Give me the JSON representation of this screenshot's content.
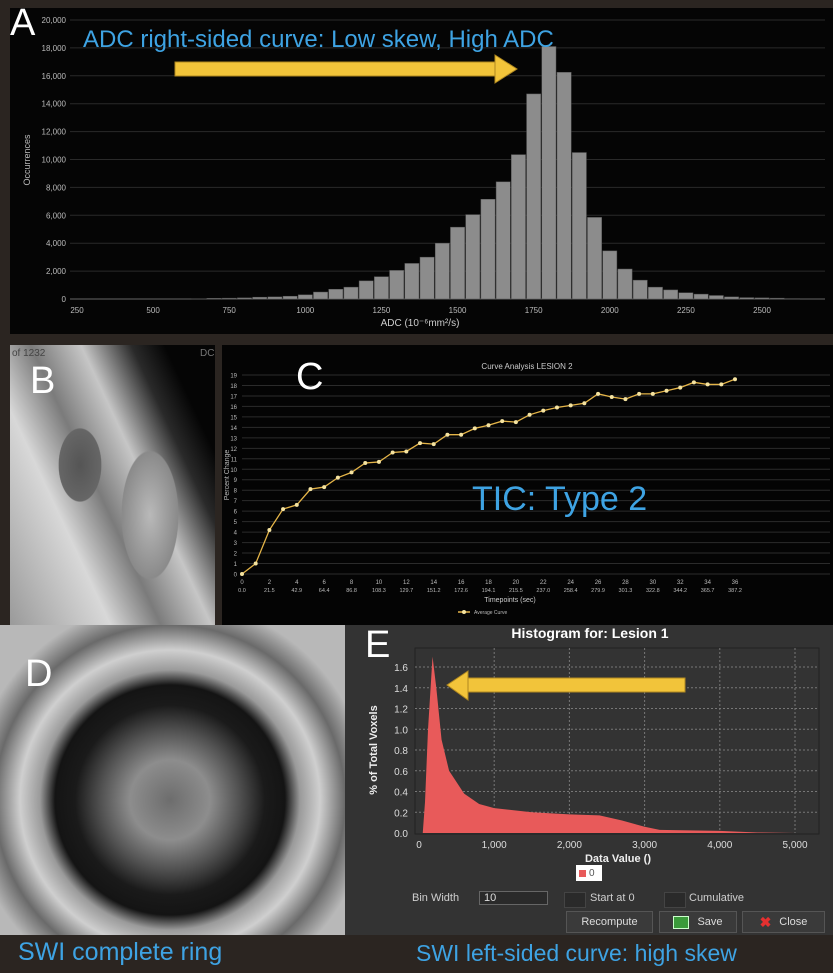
{
  "labels": {
    "a": "A",
    "b": "B",
    "c": "C",
    "d": "D",
    "e": "E"
  },
  "panel_a": {
    "annotation": "ADC right-sided curve: Low skew, High ADC"
  },
  "panel_b": {
    "slice_text": "of 1232",
    "corner_text": "DC"
  },
  "panel_c": {
    "annotation": "TIC: Type 2"
  },
  "captions": {
    "d": "SWI complete ring",
    "e": "SWI left-sided curve: high skew"
  },
  "panel_e_controls": {
    "legend_label": "0",
    "bin_width_label": "Bin Width",
    "bin_width_value": "10",
    "start_at_0_label": "Start at 0",
    "cumulative_label": "Cumulative",
    "recompute_label": "Recompute",
    "save_label": "Save",
    "close_label": "Close"
  },
  "colors": {
    "accent_blue": "#3ea3e3",
    "arrow_yellow": "#f2c43a",
    "bar_gray": "#8c8c8c",
    "curve_orange": "#e5b548",
    "hist_red": "#e85a5a"
  },
  "chart_data": [
    {
      "type": "bar",
      "title": "",
      "xlabel": "ADC (10⁻⁶mm²/s)",
      "ylabel": "Occurrences",
      "xlim": [
        220,
        2700
      ],
      "ylim": [
        0,
        20000
      ],
      "xticks": [
        250,
        500,
        750,
        1000,
        1250,
        1500,
        1750,
        2000,
        2250,
        2500
      ],
      "yticks": [
        0,
        2000,
        4000,
        6000,
        8000,
        10000,
        12000,
        14000,
        16000,
        18000,
        20000
      ],
      "ytick_labels": [
        "0",
        "2,000",
        "4,000",
        "6,000",
        "8,000",
        "10,000",
        "12,000",
        "14,000",
        "16,000",
        "18,000",
        "20,000"
      ],
      "bin_width": 50,
      "x": [
        650,
        700,
        750,
        800,
        850,
        900,
        950,
        1000,
        1050,
        1100,
        1150,
        1200,
        1250,
        1300,
        1350,
        1400,
        1450,
        1500,
        1550,
        1600,
        1650,
        1700,
        1750,
        1800,
        1850,
        1900,
        1950,
        2000,
        2050,
        2100,
        2150,
        2200,
        2250,
        2300,
        2350,
        2400,
        2450,
        2500,
        2550,
        2600
      ],
      "values": [
        20,
        50,
        60,
        80,
        130,
        150,
        200,
        300,
        500,
        700,
        850,
        1300,
        1600,
        2050,
        2550,
        3000,
        4000,
        5150,
        6050,
        7150,
        8400,
        10350,
        14700,
        18100,
        16250,
        10500,
        5850,
        3450,
        2150,
        1350,
        850,
        650,
        450,
        350,
        250,
        150,
        100,
        80,
        60,
        30
      ]
    },
    {
      "type": "line",
      "title": "Curve Analysis LESION 2",
      "xlabel": "Timepoints (sec)",
      "ylabel": "Percent Change",
      "legend": [
        "Average Curve"
      ],
      "legend_position": "bottom",
      "xlim": [
        0,
        36
      ],
      "ylim": [
        0,
        19
      ],
      "xticks": [
        0,
        2,
        4,
        6,
        8,
        10,
        12,
        14,
        16,
        18,
        20,
        22,
        24,
        26,
        28,
        30,
        32,
        34,
        36
      ],
      "xtick_seconds": [
        "0.0",
        "21.5",
        "42.9",
        "64.4",
        "86.8",
        "108.3",
        "129.7",
        "151.2",
        "172.6",
        "194.1",
        "215.5",
        "237.0",
        "258.4",
        "279.9",
        "301.3",
        "322.8",
        "344.2",
        "365.7",
        "387.2"
      ],
      "yticks": [
        0,
        1,
        2,
        3,
        4,
        5,
        6,
        7,
        8,
        9,
        10,
        11,
        12,
        13,
        14,
        15,
        16,
        17,
        18,
        19
      ],
      "series": [
        {
          "name": "Average Curve",
          "x": [
            0,
            1,
            2,
            3,
            4,
            5,
            6,
            7,
            8,
            9,
            10,
            11,
            12,
            13,
            14,
            15,
            16,
            17,
            18,
            19,
            20,
            21,
            22,
            23,
            24,
            25,
            26,
            27,
            28,
            29,
            30,
            31,
            32,
            33,
            34,
            35,
            36
          ],
          "values": [
            0,
            1,
            4.2,
            6.2,
            6.6,
            8.1,
            8.3,
            9.2,
            9.7,
            10.6,
            10.7,
            11.6,
            11.7,
            12.5,
            12.4,
            13.3,
            13.3,
            13.9,
            14.2,
            14.6,
            14.5,
            15.2,
            15.6,
            15.9,
            16.1,
            16.3,
            17.2,
            16.9,
            16.7,
            17.2,
            17.2,
            17.5,
            17.8,
            18.3,
            18.1,
            18.1,
            18.6
          ]
        }
      ]
    },
    {
      "type": "area",
      "title": "Histogram for: Lesion 1",
      "xlabel": "Data Value ()",
      "ylabel": "% of Total Voxels",
      "legend": [
        "0"
      ],
      "xlim": [
        0,
        5300
      ],
      "ylim": [
        0,
        1.75
      ],
      "xticks": [
        0,
        1000,
        2000,
        3000,
        4000,
        5000
      ],
      "xtick_labels": [
        "0",
        "1,000",
        "2,000",
        "3,000",
        "4,000",
        "5,000"
      ],
      "yticks": [
        0,
        0.2,
        0.4,
        0.6,
        0.8,
        1.0,
        1.2,
        1.4,
        1.6
      ],
      "ytick_labels": [
        "0.0",
        "0.2",
        "0.4",
        "0.6",
        "0.8",
        "1.0",
        "1.2",
        "1.4",
        "1.6"
      ],
      "x": [
        50,
        80,
        120,
        180,
        230,
        300,
        400,
        600,
        800,
        1000,
        1500,
        2000,
        2400,
        2700,
        3000,
        3200,
        4000,
        4500,
        5000
      ],
      "values": [
        0,
        0.3,
        1.0,
        1.7,
        1.4,
        0.9,
        0.6,
        0.38,
        0.28,
        0.24,
        0.2,
        0.18,
        0.17,
        0.12,
        0.06,
        0.03,
        0.02,
        0.005,
        0
      ]
    }
  ]
}
